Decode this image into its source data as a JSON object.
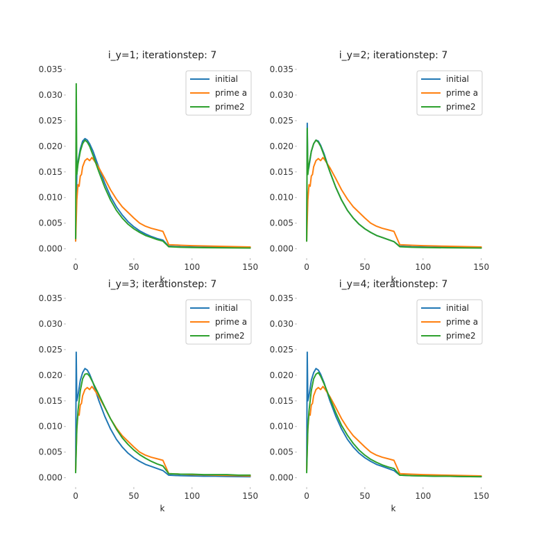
{
  "chart_data": [
    {
      "type": "line",
      "title": "i_y=1; iterationstep: 7",
      "xlabel": "k",
      "ylabel": "",
      "xlim": [
        -3,
        152
      ],
      "ylim": [
        -0.001,
        0.035
      ],
      "xticks": [
        "0",
        "50",
        "100",
        "150"
      ],
      "yticks": [
        "0.000",
        "0.005",
        "0.010",
        "0.015",
        "0.020",
        "0.025",
        "0.030",
        "0.035"
      ],
      "legend": "top-right",
      "grid": false,
      "series": [
        {
          "name": "initial",
          "color": "#1f77b4",
          "x": [
            0,
            1,
            2,
            4,
            6,
            8,
            10,
            12,
            15,
            20,
            25,
            30,
            35,
            40,
            45,
            50,
            55,
            60,
            65,
            70,
            75,
            80,
            90,
            100,
            110,
            120,
            130,
            140,
            150
          ],
          "y": [
            0.0015,
            0.0145,
            0.017,
            0.0195,
            0.021,
            0.0215,
            0.0212,
            0.0205,
            0.019,
            0.0158,
            0.0128,
            0.0102,
            0.0082,
            0.0066,
            0.0053,
            0.0043,
            0.0035,
            0.0029,
            0.0024,
            0.002,
            0.0017,
            0.0005,
            0.0004,
            0.00035,
            0.0003,
            0.0003,
            0.00025,
            0.00022,
            0.0002
          ]
        },
        {
          "name": "prime a",
          "color": "#ff7f0e",
          "x": [
            0,
            1,
            2,
            3,
            4,
            5,
            6,
            8,
            10,
            12,
            14,
            16,
            18,
            20,
            25,
            30,
            35,
            40,
            45,
            50,
            55,
            60,
            65,
            70,
            75,
            80,
            90,
            100,
            110,
            120,
            130,
            140,
            150
          ],
          "y": [
            0.0015,
            0.0095,
            0.0125,
            0.0122,
            0.0142,
            0.0145,
            0.016,
            0.0172,
            0.0176,
            0.0172,
            0.0178,
            0.0172,
            0.0165,
            0.0158,
            0.0137,
            0.0115,
            0.0097,
            0.0082,
            0.0071,
            0.006,
            0.005,
            0.0044,
            0.004,
            0.0037,
            0.0034,
            0.0008,
            0.0007,
            0.0006,
            0.00055,
            0.0005,
            0.00045,
            0.0004,
            0.00035
          ]
        },
        {
          "name": "prime2",
          "color": "#2ca02c",
          "x": [
            0,
            0.5,
            1,
            2,
            4,
            6,
            8,
            10,
            12,
            15,
            20,
            25,
            30,
            35,
            40,
            45,
            50,
            55,
            60,
            65,
            70,
            75,
            80,
            90,
            100,
            110,
            120,
            130,
            140,
            150
          ],
          "y": [
            0.002,
            0.0322,
            0.0145,
            0.0165,
            0.019,
            0.0205,
            0.0212,
            0.0208,
            0.02,
            0.0182,
            0.015,
            0.012,
            0.0095,
            0.0075,
            0.006,
            0.0048,
            0.0039,
            0.0032,
            0.0026,
            0.0022,
            0.0018,
            0.0015,
            0.0004,
            0.0003,
            0.00025,
            0.00022,
            0.0002,
            0.00018,
            0.00016,
            0.00015
          ]
        }
      ]
    },
    {
      "type": "line",
      "title": "i_y=2; iterationstep: 7",
      "xlabel": "k",
      "ylabel": "",
      "xlim": [
        -3,
        152
      ],
      "ylim": [
        -0.001,
        0.035
      ],
      "xticks": [
        "0",
        "50",
        "100",
        "150"
      ],
      "yticks": [
        "0.000",
        "0.005",
        "0.010",
        "0.015",
        "0.020",
        "0.025",
        "0.030",
        "0.035"
      ],
      "legend": "top-right",
      "grid": false,
      "series": [
        {
          "name": "initial",
          "color": "#1f77b4",
          "x": [
            0,
            0.5,
            1,
            2,
            4,
            6,
            8,
            10,
            12,
            15,
            20,
            25,
            30,
            35,
            40,
            45,
            50,
            55,
            60,
            65,
            70,
            75,
            80,
            90,
            100,
            110,
            120,
            130,
            140,
            150
          ],
          "y": [
            0.0015,
            0.0245,
            0.015,
            0.016,
            0.019,
            0.0205,
            0.0212,
            0.021,
            0.0202,
            0.0185,
            0.015,
            0.012,
            0.0095,
            0.0075,
            0.006,
            0.0048,
            0.0039,
            0.0032,
            0.0026,
            0.0022,
            0.0018,
            0.0014,
            0.0005,
            0.0004,
            0.00035,
            0.0003,
            0.0003,
            0.00025,
            0.00022,
            0.0002
          ]
        },
        {
          "name": "prime a",
          "color": "#ff7f0e",
          "x": [
            0,
            1,
            2,
            3,
            4,
            5,
            6,
            8,
            10,
            12,
            14,
            16,
            18,
            20,
            25,
            30,
            35,
            40,
            45,
            50,
            55,
            60,
            65,
            70,
            75,
            80,
            90,
            100,
            110,
            120,
            130,
            140,
            150
          ],
          "y": [
            0.0015,
            0.0095,
            0.0125,
            0.0122,
            0.0142,
            0.0145,
            0.016,
            0.0172,
            0.0176,
            0.0172,
            0.0178,
            0.0172,
            0.0165,
            0.0158,
            0.0137,
            0.0115,
            0.0097,
            0.0082,
            0.0071,
            0.006,
            0.005,
            0.0044,
            0.004,
            0.0037,
            0.0034,
            0.0008,
            0.0007,
            0.0006,
            0.00055,
            0.0005,
            0.00045,
            0.0004,
            0.00035
          ]
        },
        {
          "name": "prime2",
          "color": "#2ca02c",
          "x": [
            0,
            0.5,
            1,
            2,
            4,
            6,
            8,
            10,
            12,
            15,
            20,
            25,
            30,
            35,
            40,
            45,
            50,
            55,
            60,
            65,
            70,
            75,
            80,
            90,
            100,
            110,
            120,
            130,
            140,
            150
          ],
          "y": [
            0.0015,
            0.0235,
            0.0145,
            0.0165,
            0.019,
            0.0205,
            0.0212,
            0.0208,
            0.02,
            0.0182,
            0.015,
            0.012,
            0.0095,
            0.0075,
            0.006,
            0.0048,
            0.0039,
            0.0032,
            0.0026,
            0.0022,
            0.0018,
            0.0014,
            0.0004,
            0.0003,
            0.00025,
            0.00022,
            0.0002,
            0.00018,
            0.00016,
            0.00015
          ]
        }
      ]
    },
    {
      "type": "line",
      "title": "i_y=3; iterationstep: 7",
      "xlabel": "k",
      "ylabel": "",
      "xlim": [
        -3,
        152
      ],
      "ylim": [
        -0.001,
        0.035
      ],
      "xticks": [
        "0",
        "50",
        "100",
        "150"
      ],
      "yticks": [
        "0.000",
        "0.005",
        "0.010",
        "0.015",
        "0.020",
        "0.025",
        "0.030",
        "0.035"
      ],
      "legend": "top-right",
      "grid": false,
      "series": [
        {
          "name": "initial",
          "color": "#1f77b4",
          "x": [
            0,
            0.5,
            1,
            2,
            4,
            6,
            8,
            10,
            12,
            15,
            20,
            25,
            30,
            35,
            40,
            45,
            50,
            55,
            60,
            65,
            70,
            75,
            80,
            90,
            100,
            110,
            120,
            130,
            140,
            150
          ],
          "y": [
            0.0015,
            0.0245,
            0.015,
            0.016,
            0.019,
            0.0205,
            0.0213,
            0.021,
            0.0202,
            0.0185,
            0.015,
            0.012,
            0.0095,
            0.0075,
            0.006,
            0.0048,
            0.0039,
            0.0032,
            0.0026,
            0.0022,
            0.0018,
            0.0014,
            0.0005,
            0.0004,
            0.00035,
            0.0003,
            0.0003,
            0.00025,
            0.00022,
            0.0002
          ]
        },
        {
          "name": "prime a",
          "color": "#ff7f0e",
          "x": [
            0,
            1,
            2,
            3,
            4,
            5,
            6,
            8,
            10,
            12,
            14,
            16,
            18,
            20,
            25,
            30,
            35,
            40,
            45,
            50,
            55,
            60,
            65,
            70,
            75,
            80,
            90,
            100,
            110,
            120,
            130,
            140,
            150
          ],
          "y": [
            0.0015,
            0.0095,
            0.0125,
            0.0122,
            0.0142,
            0.0145,
            0.016,
            0.0172,
            0.0176,
            0.0172,
            0.0178,
            0.0172,
            0.0165,
            0.0158,
            0.0137,
            0.0115,
            0.0097,
            0.0082,
            0.0071,
            0.006,
            0.005,
            0.0044,
            0.004,
            0.0037,
            0.0034,
            0.0008,
            0.0007,
            0.0006,
            0.00055,
            0.0005,
            0.00045,
            0.0004,
            0.00035
          ]
        },
        {
          "name": "prime2",
          "color": "#2ca02c",
          "x": [
            0,
            1,
            2,
            4,
            6,
            8,
            10,
            12,
            15,
            20,
            25,
            30,
            35,
            40,
            45,
            50,
            55,
            60,
            65,
            70,
            75,
            80,
            90,
            100,
            110,
            120,
            130,
            140,
            150
          ],
          "y": [
            0.001,
            0.0095,
            0.013,
            0.017,
            0.0193,
            0.0202,
            0.0203,
            0.0198,
            0.0185,
            0.0162,
            0.0138,
            0.0115,
            0.0095,
            0.0078,
            0.0065,
            0.0054,
            0.0045,
            0.0038,
            0.0032,
            0.0027,
            0.0023,
            0.0008,
            0.0007,
            0.0007,
            0.0006,
            0.0006,
            0.0006,
            0.0005,
            0.0005
          ]
        }
      ]
    },
    {
      "type": "line",
      "title": "i_y=4; iterationstep: 7",
      "xlabel": "k",
      "ylabel": "",
      "xlim": [
        -3,
        152
      ],
      "ylim": [
        -0.001,
        0.035
      ],
      "xticks": [
        "0",
        "50",
        "100",
        "150"
      ],
      "yticks": [
        "0.000",
        "0.005",
        "0.010",
        "0.015",
        "0.020",
        "0.025",
        "0.030",
        "0.035"
      ],
      "legend": "top-right",
      "grid": false,
      "series": [
        {
          "name": "initial",
          "color": "#1f77b4",
          "x": [
            0,
            0.5,
            1,
            2,
            4,
            6,
            8,
            10,
            12,
            15,
            20,
            25,
            30,
            35,
            40,
            45,
            50,
            55,
            60,
            65,
            70,
            75,
            80,
            90,
            100,
            110,
            120,
            130,
            140,
            150
          ],
          "y": [
            0.0015,
            0.0245,
            0.015,
            0.016,
            0.019,
            0.0205,
            0.0213,
            0.021,
            0.0202,
            0.0185,
            0.015,
            0.012,
            0.0095,
            0.0075,
            0.006,
            0.0048,
            0.0039,
            0.0032,
            0.0026,
            0.0022,
            0.0018,
            0.0014,
            0.0005,
            0.0004,
            0.00035,
            0.0003,
            0.0003,
            0.00025,
            0.00022,
            0.0002
          ]
        },
        {
          "name": "prime a",
          "color": "#ff7f0e",
          "x": [
            0,
            1,
            2,
            3,
            4,
            5,
            6,
            8,
            10,
            12,
            14,
            16,
            18,
            20,
            25,
            30,
            35,
            40,
            45,
            50,
            55,
            60,
            65,
            70,
            75,
            80,
            90,
            100,
            110,
            120,
            130,
            140,
            150
          ],
          "y": [
            0.0015,
            0.0095,
            0.0125,
            0.0122,
            0.0142,
            0.0145,
            0.016,
            0.0172,
            0.0176,
            0.0172,
            0.0178,
            0.0172,
            0.0165,
            0.0158,
            0.0137,
            0.0115,
            0.0097,
            0.0082,
            0.0071,
            0.006,
            0.005,
            0.0044,
            0.004,
            0.0037,
            0.0034,
            0.0008,
            0.0007,
            0.0006,
            0.00055,
            0.0005,
            0.00045,
            0.0004,
            0.00035
          ]
        },
        {
          "name": "prime2",
          "color": "#2ca02c",
          "x": [
            0,
            1,
            2,
            4,
            6,
            8,
            10,
            12,
            15,
            20,
            25,
            30,
            35,
            40,
            45,
            50,
            55,
            60,
            65,
            70,
            75,
            80,
            90,
            100,
            110,
            120,
            130,
            140,
            150
          ],
          "y": [
            0.001,
            0.0095,
            0.013,
            0.017,
            0.0193,
            0.0202,
            0.0205,
            0.0198,
            0.0183,
            0.0155,
            0.0127,
            0.0102,
            0.0083,
            0.0067,
            0.0054,
            0.0044,
            0.0036,
            0.003,
            0.0025,
            0.0021,
            0.0018,
            0.0005,
            0.0004,
            0.00035,
            0.0003,
            0.0003,
            0.00025,
            0.00022,
            0.0002
          ]
        }
      ]
    }
  ]
}
